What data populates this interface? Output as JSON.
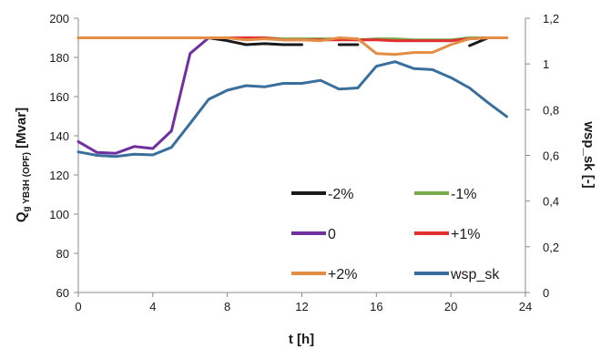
{
  "chart_data": {
    "type": "line",
    "x_label": "t [h]",
    "y_label_main": "Q",
    "y_label_sub": "g YB3H (OPF)",
    "y_label_unit": " [Mvar]",
    "y2_label": "wsp_sk [-]",
    "x_ticks": [
      "0",
      "4",
      "8",
      "12",
      "16",
      "20",
      "24"
    ],
    "y_ticks": [
      "60",
      "80",
      "100",
      "120",
      "140",
      "160",
      "180",
      "200"
    ],
    "y2_ticks": [
      "0",
      "0,2",
      "0,4",
      "0,6",
      "0,8",
      "1",
      "1,2"
    ],
    "xlim": [
      0,
      24
    ],
    "ylim": [
      60,
      200
    ],
    "y2lim": [
      0,
      1.2
    ],
    "grid": false,
    "legend_position": "bottom-right (inside plot)",
    "series": [
      {
        "name": "-2%",
        "axis": "left",
        "color": "#1a1a1a",
        "x": [
          0,
          1,
          2,
          3,
          4,
          5,
          6,
          7,
          8,
          9,
          10,
          11,
          12,
          13,
          14,
          15,
          16,
          17,
          18,
          19,
          20,
          21,
          22,
          23
        ],
        "y": [
          190,
          190,
          190,
          190,
          190,
          190,
          190,
          190,
          188.5,
          186.5,
          187,
          186.5,
          186.5,
          null,
          186.5,
          186.5,
          null,
          null,
          null,
          null,
          null,
          186,
          190,
          190
        ]
      },
      {
        "name": "-1%",
        "axis": "left",
        "color": "#7aab4b",
        "x": [
          0,
          1,
          2,
          3,
          4,
          5,
          6,
          7,
          8,
          9,
          10,
          11,
          12,
          13,
          14,
          15,
          16,
          17,
          18,
          19,
          20,
          21,
          22,
          23
        ],
        "y": [
          190,
          190,
          190,
          190,
          190,
          190,
          190,
          190,
          190,
          190,
          190,
          189.5,
          189.5,
          189.5,
          189.5,
          189,
          189.5,
          189.5,
          189,
          189,
          189,
          190,
          190,
          190
        ]
      },
      {
        "name": "0",
        "axis": "left",
        "color": "#7030a0",
        "x": [
          0,
          1,
          2,
          3,
          4,
          5,
          6,
          7
        ],
        "y": [
          137,
          131.5,
          131,
          134.5,
          133.5,
          142.5,
          182,
          190
        ]
      },
      {
        "name": "+1%",
        "axis": "left",
        "color": "#e03030",
        "x": [
          7,
          8,
          9,
          10,
          11,
          12,
          13,
          14,
          15,
          16,
          17,
          18,
          19,
          20,
          21,
          22,
          23
        ],
        "y": [
          190,
          190,
          190,
          190,
          189,
          189,
          189,
          189,
          189,
          189,
          188.5,
          188.5,
          188.5,
          188.5,
          189.5,
          190,
          190
        ]
      },
      {
        "name": "+2%",
        "axis": "left",
        "color": "#e38d47",
        "x": [
          0,
          1,
          2,
          3,
          4,
          5,
          6,
          7,
          8,
          9,
          10,
          11,
          12,
          13,
          14,
          15,
          16,
          17,
          18,
          19,
          20,
          21,
          22,
          23
        ],
        "y": [
          190,
          190,
          190,
          190,
          190,
          190,
          190,
          190,
          190,
          189,
          189.5,
          189,
          189,
          188.5,
          190,
          189.5,
          182,
          181.5,
          182.5,
          182.5,
          186.5,
          189.5,
          190,
          190
        ]
      },
      {
        "name": "wsp_sk",
        "axis": "right",
        "color": "#3a6e9c",
        "x": [
          0,
          1,
          2,
          3,
          4,
          5,
          6,
          7,
          8,
          9,
          10,
          11,
          12,
          13,
          14,
          15,
          16,
          17,
          18,
          19,
          20,
          21,
          22,
          23
        ],
        "y": [
          0.615,
          0.6,
          0.595,
          0.605,
          0.602,
          0.635,
          0.74,
          0.845,
          0.885,
          0.905,
          0.9,
          0.915,
          0.915,
          0.928,
          0.89,
          0.895,
          0.99,
          1.01,
          0.98,
          0.975,
          0.94,
          0.895,
          0.83,
          0.77
        ]
      }
    ]
  }
}
